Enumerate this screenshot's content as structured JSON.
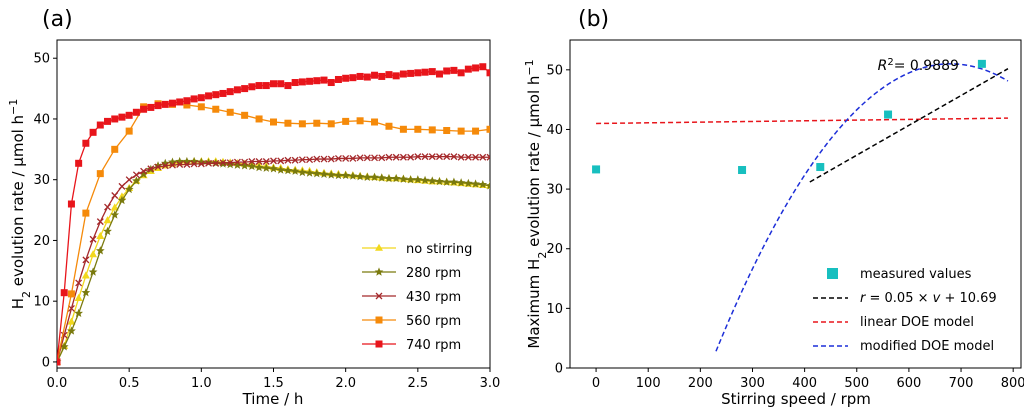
{
  "chart_data": [
    {
      "type": "line",
      "panel_label": "(a)",
      "xlabel": "Time / h",
      "ylabel_parts": {
        "pre": "H",
        "sub": "2",
        "mid": " evolution rate / µmol h",
        "sup": "−1"
      },
      "xlim": [
        0.0,
        3.0
      ],
      "ylim": [
        -1,
        53
      ],
      "xticks": [
        0.0,
        0.5,
        1.0,
        1.5,
        2.0,
        2.5,
        3.0
      ],
      "xtick_labels": [
        "0.0",
        "0.5",
        "1.0",
        "1.5",
        "2.0",
        "2.5",
        "3.0"
      ],
      "yticks": [
        0,
        10,
        20,
        30,
        40,
        50
      ],
      "ytick_labels": [
        "0",
        "10",
        "20",
        "30",
        "40",
        "50"
      ],
      "legend_position": "lower-right",
      "series": [
        {
          "name": "no stirring",
          "color": "#f2d81d",
          "marker": "triangle",
          "x": [
            0,
            0.05,
            0.1,
            0.15,
            0.2,
            0.25,
            0.3,
            0.35,
            0.4,
            0.45,
            0.5,
            0.55,
            0.6,
            0.65,
            0.7,
            0.75,
            0.8,
            0.85,
            0.9,
            0.95,
            1.0,
            1.05,
            1.1,
            1.15,
            1.2,
            1.25,
            1.3,
            1.35,
            1.4,
            1.45,
            1.5,
            1.55,
            1.6,
            1.65,
            1.7,
            1.75,
            1.8,
            1.85,
            1.9,
            1.95,
            2.0,
            2.05,
            2.1,
            2.15,
            2.2,
            2.25,
            2.3,
            2.35,
            2.4,
            2.45,
            2.5,
            2.55,
            2.6,
            2.65,
            2.7,
            2.75,
            2.8,
            2.85,
            2.9,
            2.95,
            3.0
          ],
          "y": [
            0,
            2.6,
            6.6,
            10.5,
            14.2,
            17.7,
            20.7,
            23.3,
            25.4,
            27.2,
            28.6,
            29.8,
            30.7,
            31.4,
            31.9,
            32.3,
            32.6,
            32.8,
            32.9,
            33.0,
            33.0,
            33.0,
            33.0,
            32.9,
            32.8,
            32.7,
            32.6,
            32.5,
            32.3,
            32.2,
            32.0,
            31.9,
            31.7,
            31.6,
            31.5,
            31.4,
            31.2,
            31.1,
            31.0,
            30.9,
            30.8,
            30.7,
            30.6,
            30.5,
            30.4,
            30.3,
            30.2,
            30.2,
            30.1,
            30.0,
            29.9,
            29.8,
            29.7,
            29.7,
            29.6,
            29.5,
            29.4,
            29.3,
            29.2,
            29.1,
            29.0
          ]
        },
        {
          "name": "280 rpm",
          "color": "#7a7a0e",
          "marker": "star",
          "x": [
            0,
            0.05,
            0.1,
            0.15,
            0.2,
            0.25,
            0.3,
            0.35,
            0.4,
            0.45,
            0.5,
            0.55,
            0.6,
            0.65,
            0.7,
            0.75,
            0.8,
            0.85,
            0.9,
            0.95,
            1.0,
            1.05,
            1.1,
            1.15,
            1.2,
            1.25,
            1.3,
            1.35,
            1.4,
            1.45,
            1.5,
            1.55,
            1.6,
            1.65,
            1.7,
            1.75,
            1.8,
            1.85,
            1.9,
            1.95,
            2.0,
            2.05,
            2.1,
            2.15,
            2.2,
            2.25,
            2.3,
            2.35,
            2.4,
            2.45,
            2.5,
            2.55,
            2.6,
            2.65,
            2.7,
            2.75,
            2.8,
            2.85,
            2.9,
            2.95,
            3.0
          ],
          "y": [
            0,
            2.5,
            5.1,
            8.0,
            11.4,
            14.8,
            18.3,
            21.5,
            24.2,
            26.6,
            28.4,
            29.8,
            30.9,
            31.7,
            32.3,
            32.7,
            32.9,
            33.0,
            33.0,
            33.0,
            32.9,
            32.8,
            32.7,
            32.6,
            32.5,
            32.4,
            32.3,
            32.2,
            32.0,
            31.9,
            31.8,
            31.6,
            31.5,
            31.4,
            31.2,
            31.1,
            31.0,
            30.9,
            30.8,
            30.7,
            30.7,
            30.6,
            30.5,
            30.4,
            30.4,
            30.3,
            30.2,
            30.2,
            30.1,
            30.0,
            30.0,
            29.9,
            29.8,
            29.7,
            29.6,
            29.6,
            29.5,
            29.4,
            29.3,
            29.2,
            29.0
          ]
        },
        {
          "name": "430 rpm",
          "color": "#a5292b",
          "marker": "x",
          "x": [
            0,
            0.05,
            0.1,
            0.15,
            0.2,
            0.25,
            0.3,
            0.35,
            0.4,
            0.45,
            0.5,
            0.55,
            0.6,
            0.65,
            0.7,
            0.75,
            0.8,
            0.85,
            0.9,
            0.95,
            1.0,
            1.05,
            1.1,
            1.15,
            1.2,
            1.25,
            1.3,
            1.35,
            1.4,
            1.45,
            1.5,
            1.55,
            1.6,
            1.65,
            1.7,
            1.75,
            1.8,
            1.85,
            1.9,
            1.95,
            2.0,
            2.05,
            2.1,
            2.15,
            2.2,
            2.25,
            2.3,
            2.35,
            2.4,
            2.45,
            2.5,
            2.55,
            2.6,
            2.65,
            2.7,
            2.75,
            2.8,
            2.85,
            2.9,
            2.95,
            3.0
          ],
          "y": [
            0,
            4.4,
            8.8,
            13.0,
            16.8,
            20.2,
            23.1,
            25.5,
            27.4,
            28.9,
            30.0,
            30.8,
            31.4,
            31.8,
            32.1,
            32.3,
            32.4,
            32.5,
            32.5,
            32.6,
            32.6,
            32.7,
            32.7,
            32.8,
            32.8,
            32.9,
            32.9,
            33.0,
            33.0,
            33.0,
            33.1,
            33.1,
            33.2,
            33.2,
            33.3,
            33.3,
            33.4,
            33.4,
            33.4,
            33.5,
            33.5,
            33.5,
            33.6,
            33.6,
            33.6,
            33.6,
            33.7,
            33.7,
            33.7,
            33.7,
            33.8,
            33.8,
            33.8,
            33.8,
            33.8,
            33.8,
            33.7,
            33.7,
            33.7,
            33.7,
            33.7
          ]
        },
        {
          "name": "560 rpm",
          "color": "#f58a0a",
          "marker": "square",
          "x": [
            0,
            0.1,
            0.2,
            0.3,
            0.4,
            0.5,
            0.6,
            0.7,
            0.8,
            0.9,
            1.0,
            1.1,
            1.2,
            1.3,
            1.4,
            1.5,
            1.6,
            1.7,
            1.8,
            1.9,
            2.0,
            2.1,
            2.2,
            2.3,
            2.4,
            2.5,
            2.6,
            2.7,
            2.8,
            2.9,
            3.0
          ],
          "y": [
            0,
            11.2,
            24.5,
            31.0,
            35.0,
            38.0,
            42.0,
            42.5,
            42.4,
            42.3,
            42.0,
            41.6,
            41.1,
            40.6,
            40.0,
            39.5,
            39.3,
            39.2,
            39.3,
            39.2,
            39.6,
            39.7,
            39.5,
            38.8,
            38.3,
            38.3,
            38.2,
            38.1,
            38.0,
            38.0,
            38.3
          ]
        },
        {
          "name": "740 rpm",
          "color": "#e8151b",
          "marker": "square",
          "x": [
            0,
            0.05,
            0.1,
            0.15,
            0.2,
            0.25,
            0.3,
            0.35,
            0.4,
            0.45,
            0.5,
            0.55,
            0.6,
            0.65,
            0.7,
            0.75,
            0.8,
            0.85,
            0.9,
            0.95,
            1.0,
            1.05,
            1.1,
            1.15,
            1.2,
            1.25,
            1.3,
            1.35,
            1.4,
            1.45,
            1.5,
            1.55,
            1.6,
            1.65,
            1.7,
            1.75,
            1.8,
            1.85,
            1.9,
            1.95,
            2.0,
            2.05,
            2.1,
            2.15,
            2.2,
            2.25,
            2.3,
            2.35,
            2.4,
            2.45,
            2.5,
            2.55,
            2.6,
            2.65,
            2.7,
            2.75,
            2.8,
            2.85,
            2.9,
            2.95,
            3.0
          ],
          "y": [
            0,
            11.4,
            26.0,
            32.7,
            36.0,
            37.8,
            39.0,
            39.6,
            40.0,
            40.3,
            40.6,
            41.1,
            41.6,
            41.9,
            42.2,
            42.4,
            42.6,
            42.8,
            43.0,
            43.3,
            43.5,
            43.8,
            44.0,
            44.2,
            44.5,
            44.8,
            45.0,
            45.3,
            45.5,
            45.5,
            45.8,
            45.8,
            45.5,
            46.0,
            46.1,
            46.2,
            46.3,
            46.4,
            46.0,
            46.5,
            46.7,
            46.8,
            47.0,
            46.9,
            47.2,
            47.0,
            47.3,
            47.1,
            47.4,
            47.5,
            47.6,
            47.7,
            47.8,
            47.4,
            47.9,
            48.0,
            47.6,
            48.2,
            48.4,
            48.6,
            47.6
          ]
        }
      ]
    },
    {
      "type": "scatter",
      "panel_label": "(b)",
      "xlabel": "Stirring speed / rpm",
      "ylabel_parts": {
        "pre": "Maximum H",
        "sub": "2",
        "mid": " evolution rate / µmol h",
        "sup": "−1"
      },
      "xlim": [
        -50,
        815
      ],
      "ylim": [
        0,
        55
      ],
      "xticks": [
        0,
        100,
        200,
        300,
        400,
        500,
        600,
        700,
        800
      ],
      "xtick_labels": [
        "0",
        "100",
        "200",
        "300",
        "400",
        "500",
        "600",
        "700",
        "800"
      ],
      "yticks": [
        0,
        10,
        20,
        30,
        40,
        50
      ],
      "ytick_labels": [
        "0",
        "10",
        "20",
        "30",
        "40",
        "50"
      ],
      "legend_position": "lower-right",
      "annotation": {
        "r2_label": "R",
        "r2_sup": "2",
        "r2_value": "= 0.9889",
        "x": 540,
        "y": 50.8
      },
      "measured": {
        "name": "measured values",
        "color": "#17bfbf",
        "marker": "square",
        "x": [
          0,
          280,
          430,
          560,
          740
        ],
        "y": [
          33.3,
          33.2,
          33.7,
          42.5,
          51.0
        ]
      },
      "fit_line": {
        "name_parts": {
          "r": "r",
          "eq": " = 0.05 × ",
          "v": "v",
          "tail": "  + 10.69"
        },
        "color": "#000000",
        "slope": 0.05,
        "intercept": 10.69,
        "x_range": [
          410,
          790
        ]
      },
      "linear_model": {
        "name": "linear DOE model",
        "color": "#e8151b",
        "x": [
          0,
          790
        ],
        "y": [
          41.0,
          41.9
        ]
      },
      "modified_model": {
        "name": "modified DOE model",
        "color": "#1c2ed8",
        "peak_x": 680,
        "peak_y": 51.0,
        "curvature": 0.000238,
        "x_range": [
          230,
          790
        ]
      }
    }
  ]
}
